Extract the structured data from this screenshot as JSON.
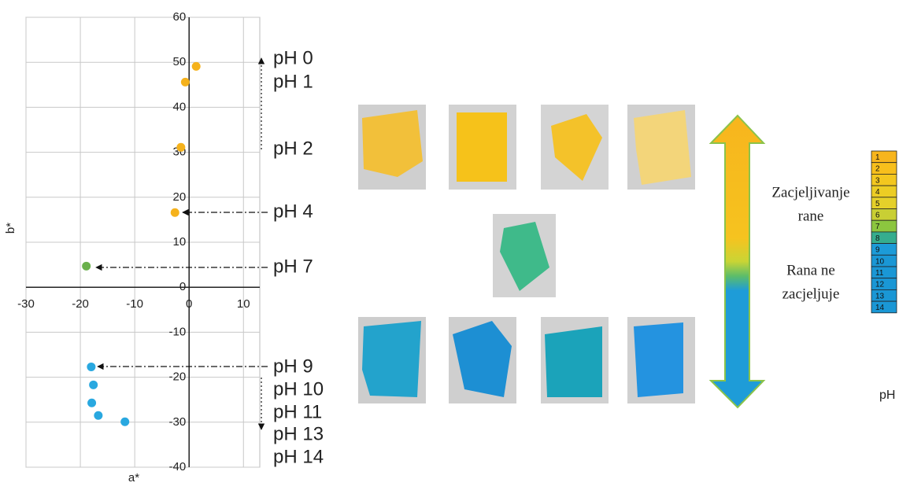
{
  "chart_data": {
    "type": "scatter",
    "x_label": "a*",
    "y_label": "b*",
    "x": [
      1.3,
      -0.7,
      -1.5,
      -2.6,
      -18.9,
      -18,
      -17.6,
      -17.9,
      -16.7,
      -11.8
    ],
    "y": [
      49.1,
      45.6,
      31.1,
      16.6,
      4.7,
      -17.7,
      -21.7,
      -25.7,
      -28.5,
      -29.9
    ],
    "colors": [
      "#f5b21c",
      "#f5b21c",
      "#f5b21c",
      "#f5b21c",
      "#6ab04c",
      "#29a8e0",
      "#29a8e0",
      "#29a8e0",
      "#29a8e0",
      "#29a8e0"
    ],
    "xlim": [
      -30,
      13
    ],
    "ylim": [
      -40,
      60
    ],
    "xticks": [
      -30,
      -20,
      -10,
      0,
      10
    ],
    "yticks": [
      -40,
      -30,
      -20,
      -10,
      0,
      10,
      20,
      30,
      40,
      50,
      60
    ],
    "grid": true
  },
  "ph_labels": [
    "pH 0",
    "pH 1",
    "pH 2",
    "pH 4",
    "pH 7",
    "pH 9",
    "pH 10",
    "pH 11",
    "pH 13",
    "pH 14"
  ],
  "healing": {
    "top": [
      "Zacjeljivanje",
      "rane"
    ],
    "bottom": [
      "Rana ne",
      "zacjeljuje"
    ]
  },
  "ph_scale": {
    "label": "pH",
    "levels": [
      1,
      2,
      3,
      4,
      5,
      6,
      7,
      8,
      9,
      10,
      11,
      12,
      13,
      14
    ],
    "colors": [
      "#f7b51d",
      "#f7bf1c",
      "#f3c71f",
      "#eccd24",
      "#e5d02a",
      "#c9cf34",
      "#8cc63f",
      "#35ad8e",
      "#1c9bd8",
      "#1a97d5",
      "#1a97d5",
      "#1a97d5",
      "#1a97d5",
      "#1a97d5"
    ]
  }
}
